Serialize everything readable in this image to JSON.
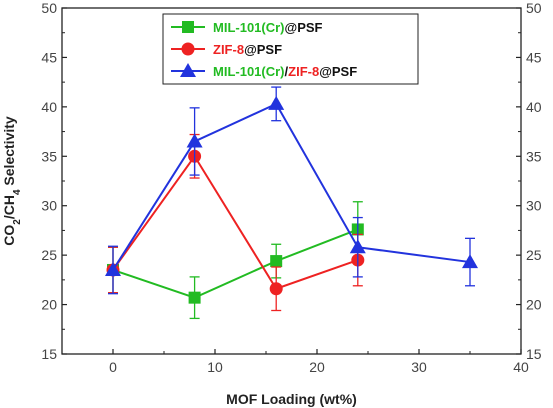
{
  "chart_data": {
    "type": "line",
    "xlabel": "MOF Loading (wt%)",
    "ylabel": "CO2/CH4 Selectivity",
    "ylabel_parts": [
      "CO",
      "2",
      "/CH",
      "4",
      " Selectivity"
    ],
    "xlim": [
      -5,
      40
    ],
    "ylim": [
      15,
      50
    ],
    "x_ticks": [
      0,
      10,
      20,
      30,
      40
    ],
    "y_ticks": [
      15,
      20,
      25,
      30,
      35,
      40,
      45,
      50
    ],
    "y_axis_right_labels": true,
    "legend_position": "top-center",
    "series": [
      {
        "legend_parts": [
          {
            "text": "MIL-101(Cr)",
            "color": "#22bb22"
          },
          {
            "text": "@PSF",
            "color": "#111111"
          }
        ],
        "color": "#22bb22",
        "marker": "square",
        "x": [
          0,
          8,
          16,
          24
        ],
        "y": [
          23.5,
          20.7,
          24.4,
          27.6
        ],
        "err": [
          2.3,
          2.1,
          1.7,
          2.8
        ]
      },
      {
        "legend_parts": [
          {
            "text": "ZIF-8",
            "color": "#ee2222"
          },
          {
            "text": "@PSF",
            "color": "#111111"
          }
        ],
        "color": "#ee2222",
        "marker": "circle",
        "x": [
          0,
          8,
          16,
          24
        ],
        "y": [
          23.5,
          35.0,
          21.6,
          24.5
        ],
        "err": [
          2.3,
          2.2,
          2.2,
          2.6
        ]
      },
      {
        "legend_parts": [
          {
            "text": "MIL-101(Cr)",
            "color": "#22bb22"
          },
          {
            "text": "/",
            "color": "#111111"
          },
          {
            "text": "ZIF-8",
            "color": "#ee2222"
          },
          {
            "text": "@PSF",
            "color": "#111111"
          }
        ],
        "color": "#2233dd",
        "marker": "triangle",
        "x": [
          0,
          8,
          16,
          24,
          35
        ],
        "y": [
          23.5,
          36.5,
          40.3,
          25.8,
          24.3
        ],
        "err": [
          2.4,
          3.4,
          1.7,
          3.0,
          2.4
        ]
      }
    ]
  }
}
